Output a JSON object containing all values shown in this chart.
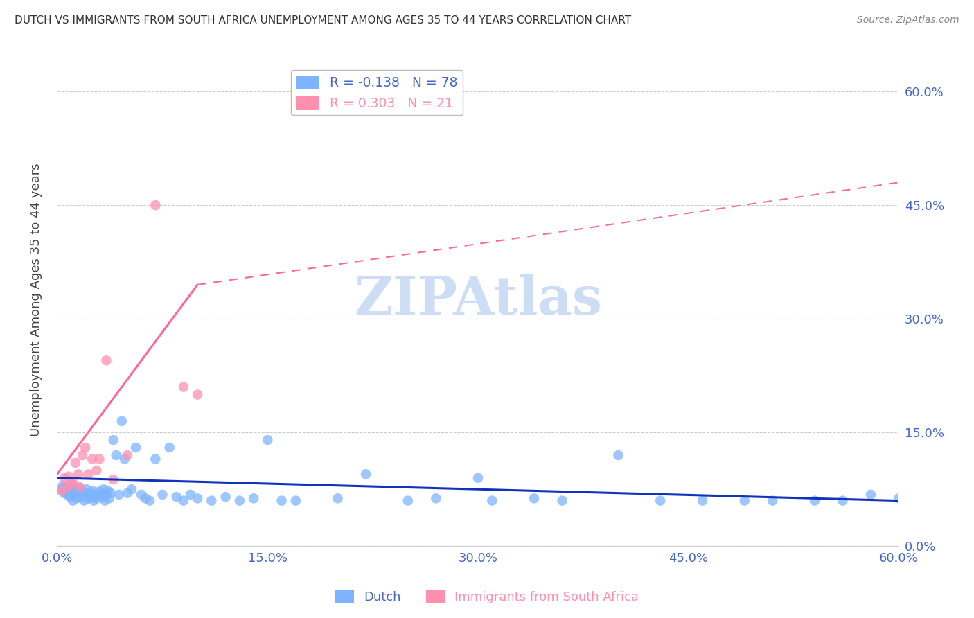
{
  "title": "DUTCH VS IMMIGRANTS FROM SOUTH AFRICA UNEMPLOYMENT AMONG AGES 35 TO 44 YEARS CORRELATION CHART",
  "source": "Source: ZipAtlas.com",
  "ylabel": "Unemployment Among Ages 35 to 44 years",
  "xlim": [
    0.0,
    0.6
  ],
  "ylim": [
    0.0,
    0.65
  ],
  "xticks": [
    0.0,
    0.15,
    0.3,
    0.45,
    0.6
  ],
  "yticks": [
    0.0,
    0.15,
    0.3,
    0.45,
    0.6
  ],
  "dutch_R": -0.138,
  "dutch_N": 78,
  "sa_R": 0.303,
  "sa_N": 21,
  "dutch_color": "#7EB3FF",
  "sa_color": "#FF8FAF",
  "dutch_line_color": "#1133BB",
  "sa_line_color": "#FF6699",
  "watermark": "ZIPAtlas",
  "watermark_color": "#CCDDF5",
  "grid_color": "#CCCCCC",
  "title_color": "#333333",
  "right_tick_color": "#4466CC",
  "bottom_tick_color": "#4466CC",
  "dutch_x": [
    0.003,
    0.004,
    0.005,
    0.006,
    0.007,
    0.008,
    0.009,
    0.01,
    0.01,
    0.011,
    0.012,
    0.013,
    0.014,
    0.015,
    0.016,
    0.017,
    0.018,
    0.019,
    0.02,
    0.021,
    0.022,
    0.023,
    0.024,
    0.025,
    0.026,
    0.027,
    0.028,
    0.03,
    0.031,
    0.032,
    0.033,
    0.034,
    0.035,
    0.036,
    0.037,
    0.038,
    0.04,
    0.042,
    0.044,
    0.046,
    0.048,
    0.05,
    0.053,
    0.056,
    0.06,
    0.063,
    0.066,
    0.07,
    0.075,
    0.08,
    0.085,
    0.09,
    0.095,
    0.1,
    0.11,
    0.12,
    0.13,
    0.14,
    0.15,
    0.16,
    0.17,
    0.2,
    0.22,
    0.25,
    0.27,
    0.3,
    0.31,
    0.34,
    0.36,
    0.4,
    0.43,
    0.46,
    0.49,
    0.51,
    0.54,
    0.56,
    0.58,
    0.6
  ],
  "dutch_y": [
    0.075,
    0.08,
    0.07,
    0.078,
    0.068,
    0.072,
    0.065,
    0.073,
    0.082,
    0.06,
    0.068,
    0.075,
    0.063,
    0.07,
    0.077,
    0.065,
    0.072,
    0.06,
    0.068,
    0.075,
    0.063,
    0.07,
    0.065,
    0.073,
    0.06,
    0.068,
    0.063,
    0.072,
    0.068,
    0.065,
    0.075,
    0.06,
    0.068,
    0.073,
    0.063,
    0.07,
    0.14,
    0.12,
    0.068,
    0.165,
    0.115,
    0.07,
    0.075,
    0.13,
    0.068,
    0.063,
    0.06,
    0.115,
    0.068,
    0.13,
    0.065,
    0.06,
    0.068,
    0.063,
    0.06,
    0.065,
    0.06,
    0.063,
    0.14,
    0.06,
    0.06,
    0.063,
    0.095,
    0.06,
    0.063,
    0.09,
    0.06,
    0.063,
    0.06,
    0.12,
    0.06,
    0.06,
    0.06,
    0.06,
    0.06,
    0.06,
    0.068,
    0.063
  ],
  "sa_x": [
    0.003,
    0.005,
    0.007,
    0.008,
    0.01,
    0.011,
    0.013,
    0.015,
    0.016,
    0.018,
    0.02,
    0.022,
    0.025,
    0.028,
    0.03,
    0.035,
    0.04,
    0.05,
    0.07,
    0.09,
    0.1
  ],
  "sa_y": [
    0.073,
    0.09,
    0.078,
    0.092,
    0.082,
    0.085,
    0.11,
    0.095,
    0.078,
    0.12,
    0.13,
    0.095,
    0.115,
    0.1,
    0.115,
    0.245,
    0.088,
    0.12,
    0.45,
    0.21,
    0.2
  ],
  "sa_line_x0": 0.0,
  "sa_line_y0": 0.095,
  "sa_line_x1": 0.1,
  "sa_line_y1": 0.345,
  "sa_line_dash_x1": 0.6,
  "sa_line_dash_y1": 0.48,
  "dutch_line_x0": 0.0,
  "dutch_line_y0": 0.09,
  "dutch_line_x1": 0.6,
  "dutch_line_y1": 0.06
}
